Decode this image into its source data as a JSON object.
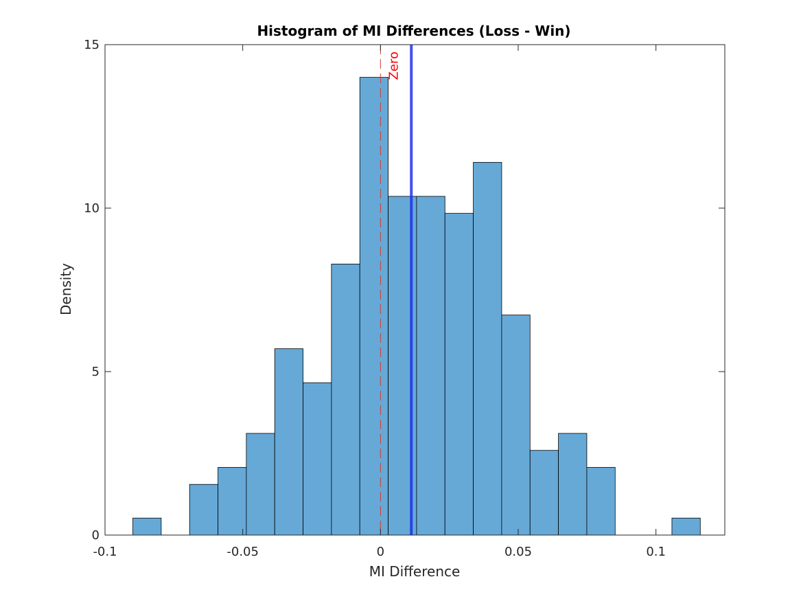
{
  "chart_data": {
    "type": "bar",
    "title": "Histogram of MI Differences (Loss - Win)",
    "xlabel": "MI Difference",
    "ylabel": "Density",
    "xlim": [
      -0.1,
      0.125
    ],
    "ylim": [
      0,
      15
    ],
    "xticks": [
      -0.1,
      -0.05,
      0,
      0.05,
      0.1
    ],
    "xtick_labels": [
      "-0.1",
      "-0.05",
      "0",
      "0.05",
      "0.1"
    ],
    "yticks": [
      0,
      5,
      10,
      15
    ],
    "ytick_labels": [
      "0",
      "5",
      "10",
      "15"
    ],
    "bin_width": 0.0103,
    "bin_edges": [
      -0.0899,
      -0.0796,
      -0.0693,
      -0.059,
      -0.0487,
      -0.0384,
      -0.0281,
      -0.0178,
      -0.0075,
      0.0028,
      0.0131,
      0.0234,
      0.0337,
      0.044,
      0.0543,
      0.0646,
      0.0749,
      0.0852,
      0.0955,
      0.1058,
      0.1161
    ],
    "values": [
      0.52,
      0,
      1.55,
      2.07,
      3.11,
      5.7,
      4.66,
      8.29,
      14.0,
      10.36,
      10.36,
      9.84,
      11.4,
      6.73,
      2.59,
      3.11,
      2.07,
      0,
      0,
      0.52
    ],
    "bar_color": "#66a9d7",
    "bar_edge_color": "#000000",
    "grid": false,
    "reference_lines": [
      {
        "x": 0,
        "style": "dashed",
        "color": "#d9382b",
        "label": "Zero",
        "label_color": "#ff0000"
      },
      {
        "x": 0.0112,
        "style": "solid",
        "color": "#2030ee",
        "label": ""
      }
    ]
  }
}
